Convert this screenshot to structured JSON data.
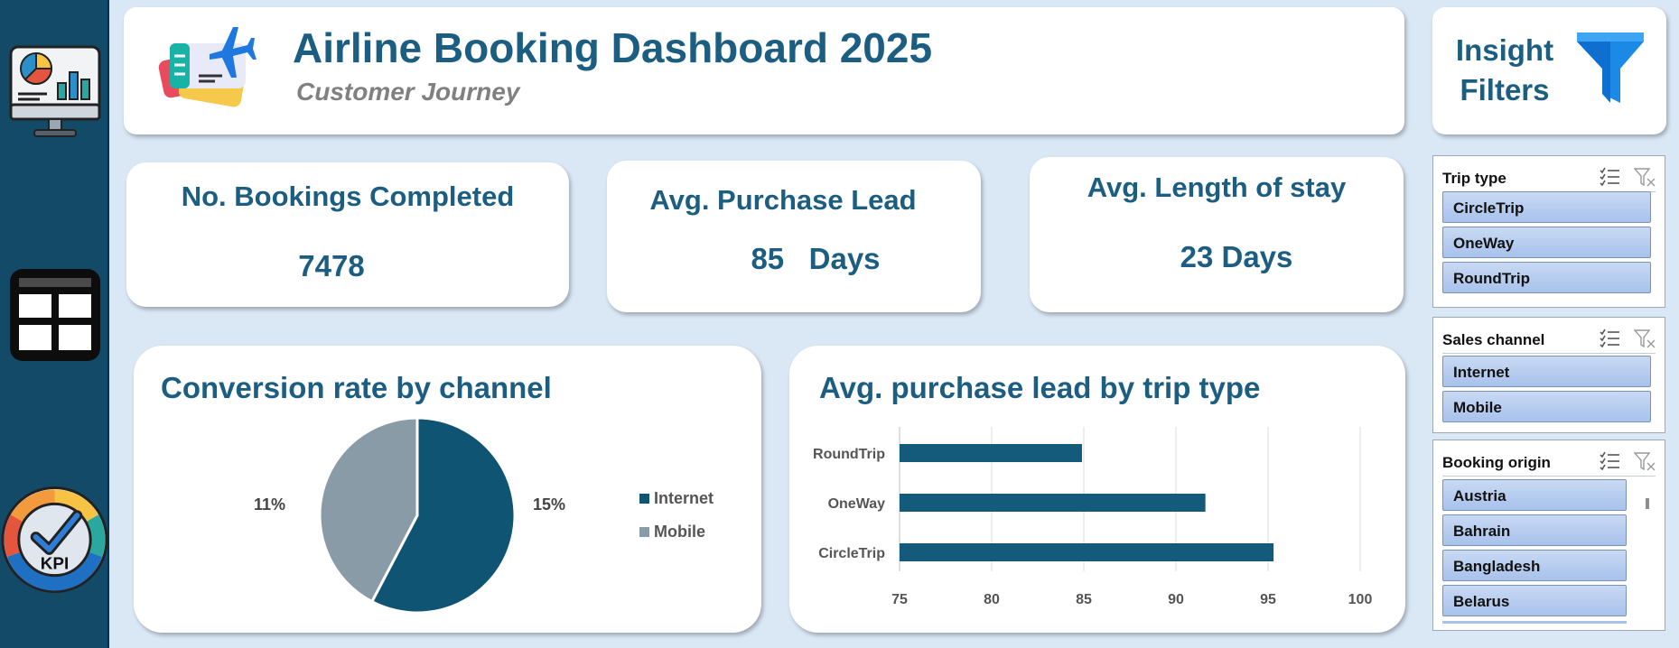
{
  "header": {
    "title": "Airline Booking Dashboard 2025",
    "subtitle": "Customer Journey"
  },
  "insight": {
    "line1": "Insight",
    "line2": "Filters"
  },
  "kpis": [
    {
      "title": "No. Bookings Completed",
      "value": "7478"
    },
    {
      "title": "Avg. Purchase Lead",
      "value": "85   Days"
    },
    {
      "title": "Avg. Length of stay",
      "value": "23 Days"
    }
  ],
  "sidebar": {
    "kpi_badge": "KPI"
  },
  "slicers": [
    {
      "title": "Trip type",
      "items": [
        "CircleTrip",
        "OneWay",
        "RoundTrip"
      ]
    },
    {
      "title": "Sales channel",
      "items": [
        "Internet",
        "Mobile"
      ]
    },
    {
      "title": "Booking origin",
      "items": [
        "Austria",
        "Bahrain",
        "Bangladesh",
        "Belarus"
      ]
    }
  ],
  "colors": {
    "navy": "#1b5e82",
    "bar": "#135a7b",
    "pie_internet": "#0f5472",
    "pie_mobile": "#8a9ba8",
    "sidebar": "#124a68"
  },
  "chart_data": [
    {
      "type": "pie",
      "title": "Conversion rate by channel",
      "categories": [
        "Internet",
        "Mobile"
      ],
      "values": [
        15,
        11
      ],
      "data_labels": [
        "15%",
        "11%"
      ],
      "legend": "right"
    },
    {
      "type": "bar",
      "orientation": "horizontal",
      "title": "Avg. purchase lead by trip type",
      "categories": [
        "RoundTrip",
        "OneWay",
        "CircleTrip"
      ],
      "values": [
        84.9,
        91.6,
        95.3
      ],
      "xlim": [
        75,
        100
      ],
      "xticks": [
        75,
        80,
        85,
        90,
        95,
        100
      ],
      "grid": true
    }
  ]
}
